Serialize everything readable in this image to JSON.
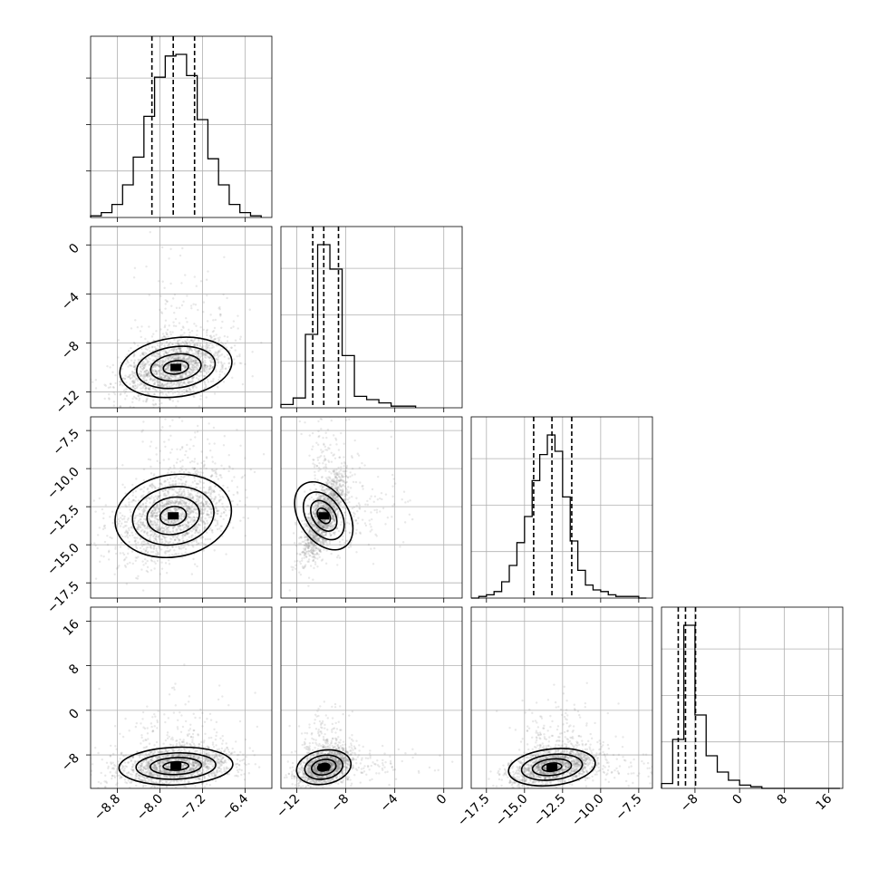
{
  "chart_data": {
    "type": "corner",
    "parameters": 4,
    "axes": [
      {
        "range": [
          -9.3,
          -5.9
        ],
        "ticks": [
          -8.8,
          -8.0,
          -7.2,
          -6.4
        ],
        "tick_labels": [
          "−8.8",
          "−8.0",
          "−7.2",
          "−6.4"
        ]
      },
      {
        "range": [
          -13.3,
          1.5
        ],
        "ticks": [
          -12,
          -8,
          -4,
          0
        ],
        "tick_labels": [
          "−12",
          "−8",
          "−4",
          "0"
        ]
      },
      {
        "range": [
          -18.5,
          -6.6
        ],
        "ticks": [
          -17.5,
          -15.0,
          -12.5,
          -10.0,
          -7.5
        ],
        "tick_labels": [
          "−17.5",
          "−15.0",
          "−12.5",
          "−10.0",
          "−7.5"
        ]
      },
      {
        "range": [
          -14.0,
          18.5
        ],
        "ticks": [
          -8,
          0,
          8,
          16
        ],
        "tick_labels": [
          "−8",
          "0",
          "8",
          "16"
        ]
      }
    ],
    "histograms": [
      {
        "edges": [
          -9.3,
          -9.1,
          -8.9,
          -8.7,
          -8.5,
          -8.3,
          -8.1,
          -7.9,
          -7.7,
          -7.5,
          -7.3,
          -7.1,
          -6.9,
          -6.7,
          -6.5,
          -6.3,
          -6.1
        ],
        "counts": [
          0.01,
          0.03,
          0.08,
          0.2,
          0.37,
          0.62,
          0.86,
          0.99,
          1.0,
          0.87,
          0.6,
          0.36,
          0.2,
          0.08,
          0.03,
          0.01
        ],
        "quantiles": [
          -8.15,
          -7.75,
          -7.35
        ]
      },
      {
        "edges": [
          -13.3,
          -12.3,
          -11.3,
          -10.3,
          -9.3,
          -8.3,
          -7.3,
          -6.3,
          -5.3,
          -4.3,
          -3.3,
          -2.3
        ],
        "counts": [
          0.02,
          0.06,
          0.45,
          1.0,
          0.85,
          0.32,
          0.07,
          0.05,
          0.03,
          0.01,
          0.01
        ],
        "quantiles": [
          -10.7,
          -9.8,
          -8.6
        ]
      },
      {
        "edges": [
          -18.5,
          -18.0,
          -17.5,
          -17.0,
          -16.5,
          -16.0,
          -15.5,
          -15.0,
          -14.5,
          -14.0,
          -13.5,
          -13.0,
          -12.5,
          -12.0,
          -11.5,
          -11.0,
          -10.5,
          -10.0,
          -9.5,
          -9.0,
          -8.5,
          -8.0,
          -7.5,
          -7.0
        ],
        "counts": [
          0.0,
          0.01,
          0.02,
          0.04,
          0.1,
          0.2,
          0.34,
          0.5,
          0.72,
          0.88,
          1.0,
          0.9,
          0.62,
          0.35,
          0.17,
          0.08,
          0.05,
          0.04,
          0.02,
          0.01,
          0.01,
          0.01,
          0.0
        ],
        "quantiles": [
          -14.4,
          -13.2,
          -11.9
        ]
      },
      {
        "edges": [
          -14.0,
          -12.0,
          -10.0,
          -8.0,
          -6.0,
          -4.0,
          -2.0,
          0.0,
          2.0,
          4.0,
          6.0,
          8.0,
          10.0,
          12.0,
          14.0,
          16.0,
          18.0
        ],
        "counts": [
          0.03,
          0.3,
          1.0,
          0.45,
          0.2,
          0.1,
          0.05,
          0.02,
          0.01,
          0.0,
          0.0,
          0.0,
          0.0,
          0.0,
          0.0,
          0.0
        ],
        "quantiles": [
          -11.0,
          -9.7,
          -7.9
        ]
      }
    ],
    "pairs": [
      {
        "row": 1,
        "col": 0,
        "center": [
          -7.7,
          -10.0
        ],
        "sd": [
          0.5,
          1.25
        ],
        "rho": 0.38,
        "tail": [
          0.0,
          0.12
        ]
      },
      {
        "row": 2,
        "col": 0,
        "center": [
          -7.75,
          -13.1
        ],
        "sd": [
          0.52,
          1.4
        ],
        "rho": 0.38,
        "tail": [
          0.0,
          0.1
        ]
      },
      {
        "row": 2,
        "col": 1,
        "center": [
          -9.8,
          -13.1
        ],
        "sd": [
          0.9,
          1.45
        ],
        "rho": 0.75,
        "tail": [
          0.12,
          0.1
        ]
      },
      {
        "row": 3,
        "col": 0,
        "center": [
          -7.7,
          -10.0
        ],
        "sd": [
          0.52,
          1.7
        ],
        "rho": 0.18,
        "tail": [
          0.0,
          0.14
        ]
      },
      {
        "row": 3,
        "col": 1,
        "center": [
          -9.8,
          -10.2
        ],
        "sd": [
          1.05,
          1.6
        ],
        "rho": 0.45,
        "tail": [
          0.12,
          0.14
        ]
      },
      {
        "row": 3,
        "col": 2,
        "center": [
          -13.2,
          -10.2
        ],
        "sd": [
          1.35,
          1.7
        ],
        "rho": 0.4,
        "tail": [
          0.1,
          0.14
        ]
      }
    ],
    "contour_levels": [
      "2d-density",
      "4 nested levels"
    ],
    "grid": true,
    "colors": {
      "points": "#808080",
      "lines": "#000000",
      "grid": "#b0b0b0"
    }
  }
}
